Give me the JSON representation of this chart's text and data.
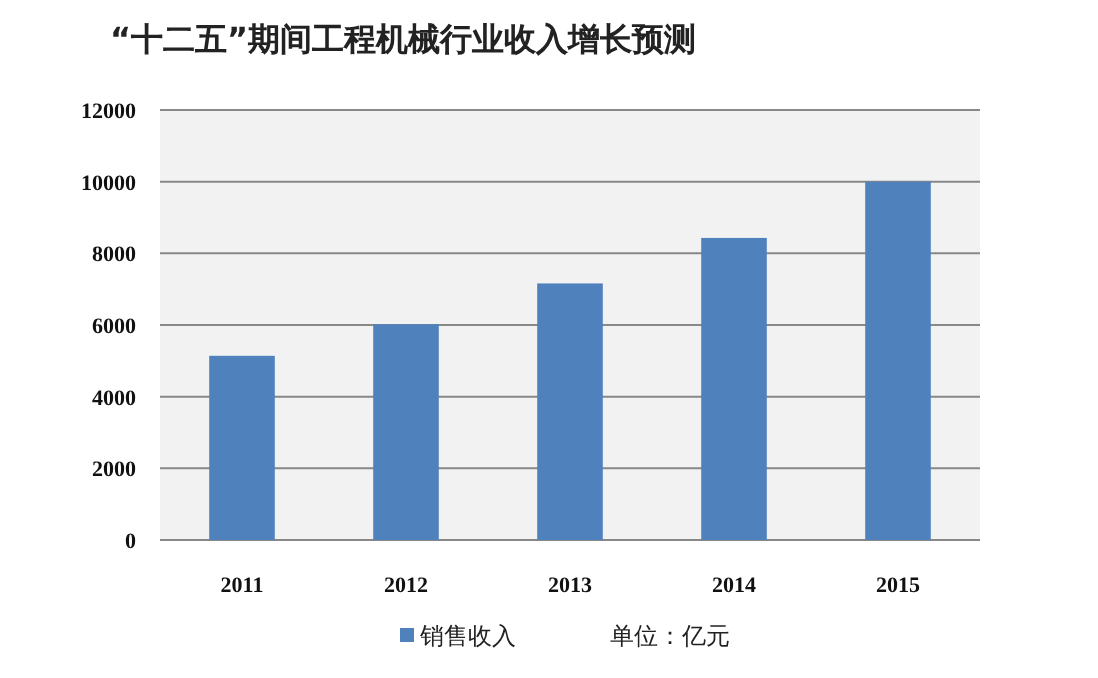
{
  "chart_data": {
    "type": "bar",
    "title": "“十二五”期间工程机械行业收入增长预测",
    "categories": [
      "2011",
      "2012",
      "2013",
      "2014",
      "2015"
    ],
    "series": [
      {
        "name": "销售收入",
        "color": "#4f81bd",
        "values": [
          5140,
          6020,
          7160,
          8430,
          10000
        ]
      }
    ],
    "ylim": [
      0,
      12000
    ],
    "yticks": [
      0,
      2000,
      4000,
      6000,
      8000,
      10000,
      12000
    ],
    "grid": "y",
    "legend": "bottom",
    "annotations": [
      "单位：亿元"
    ]
  }
}
